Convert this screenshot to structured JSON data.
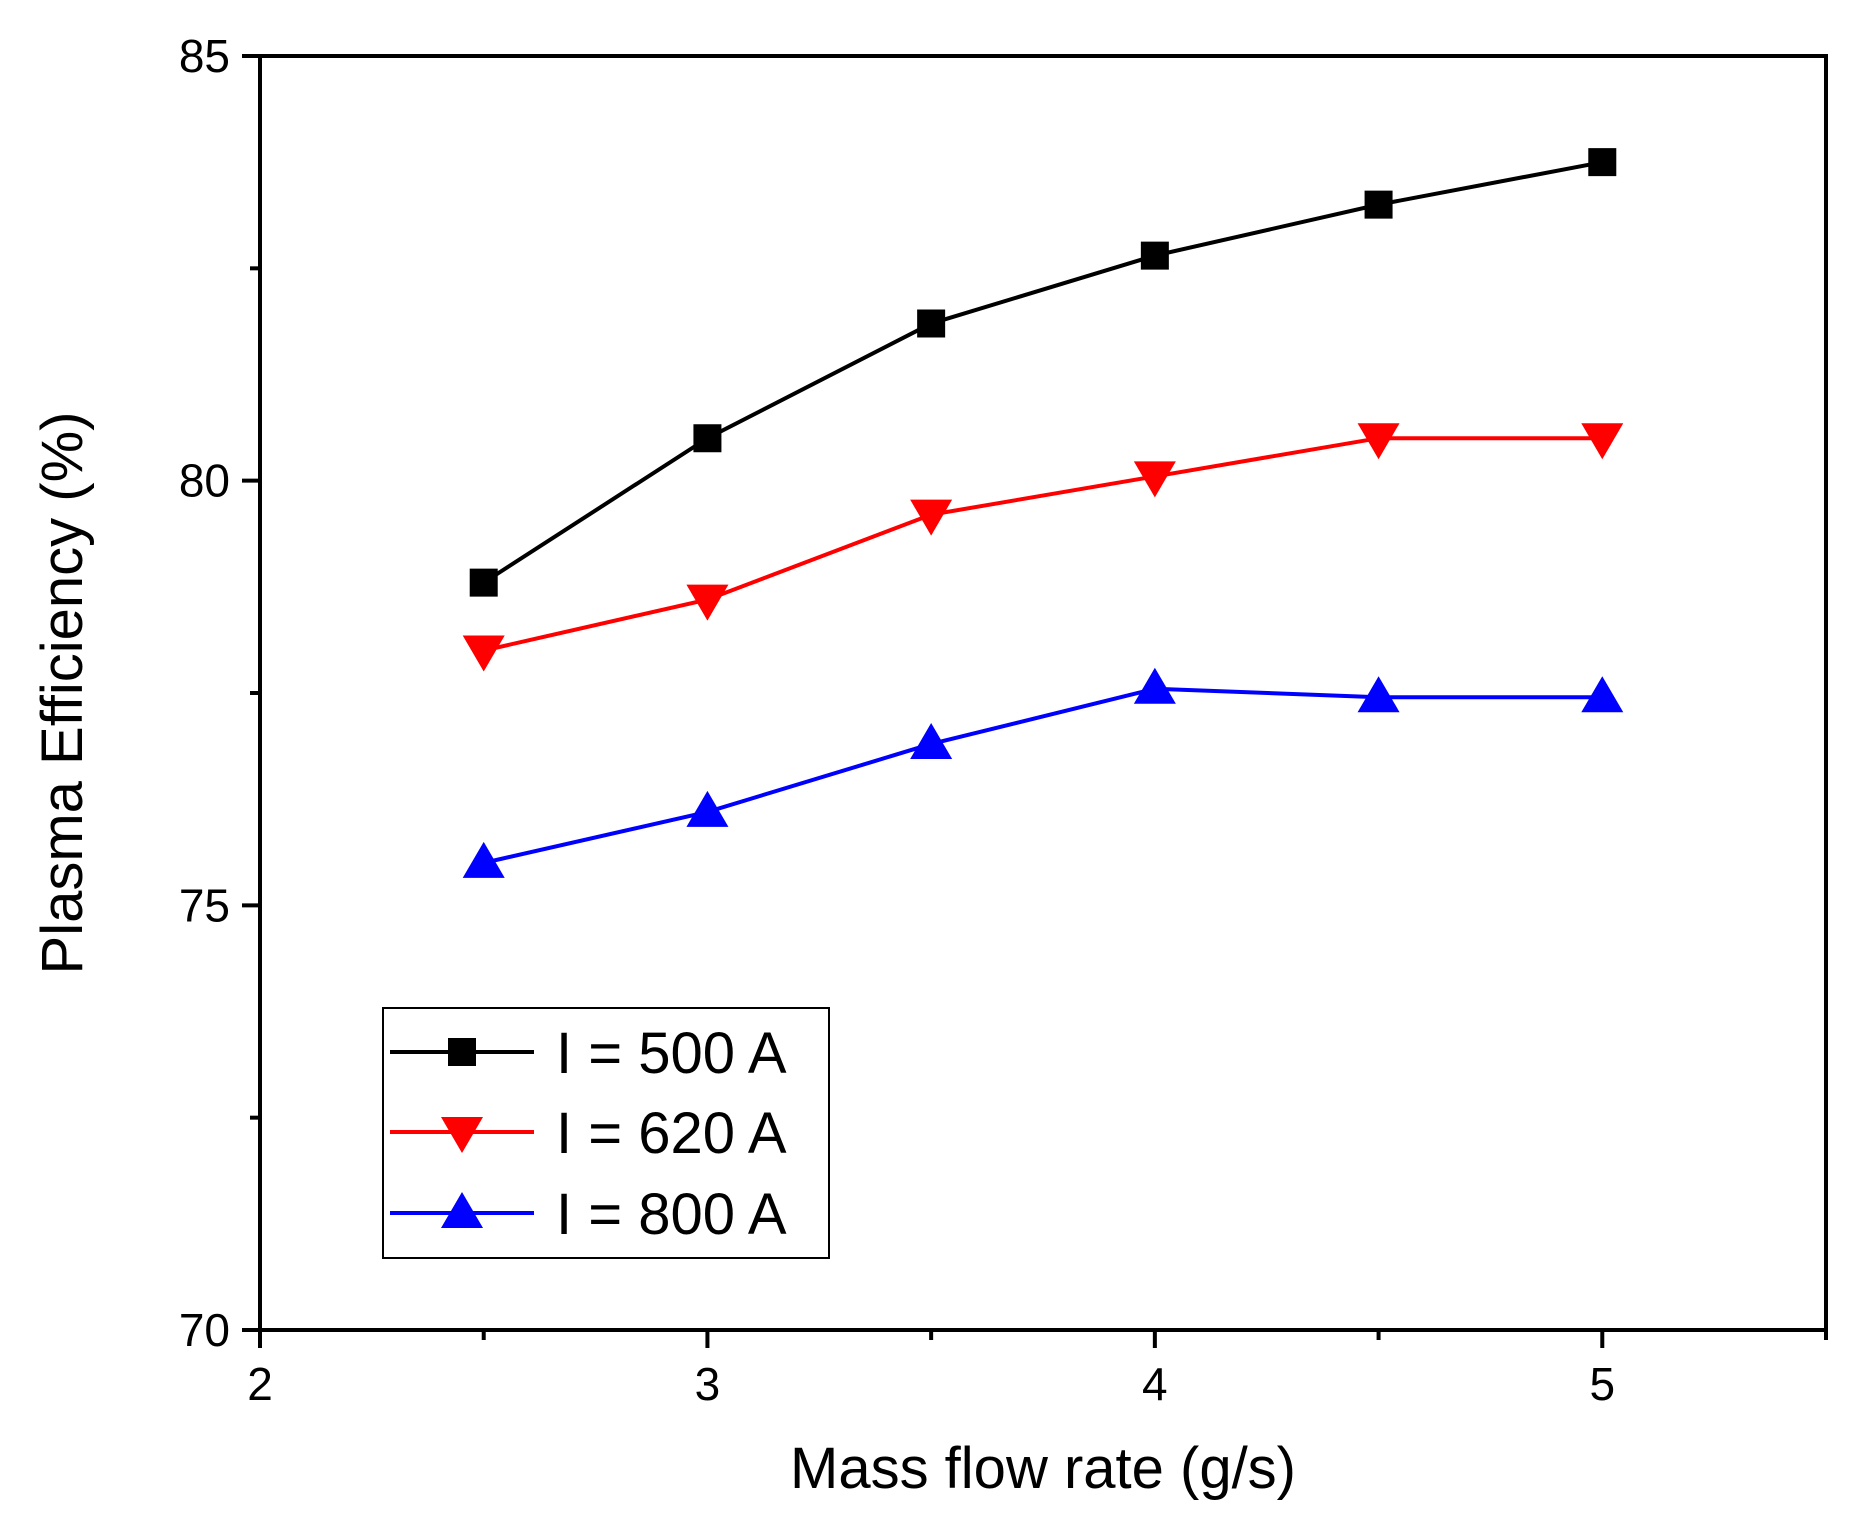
{
  "chart_data": {
    "type": "line",
    "title": "",
    "xlabel": "Mass flow rate (g/s)",
    "ylabel": "Plasma Efficiency (%)",
    "xlim": [
      2,
      5.5
    ],
    "ylim": [
      70,
      85
    ],
    "x_major_ticks": [
      2,
      3,
      4,
      5
    ],
    "x_minor_ticks": [
      2.5,
      3.5,
      4.5,
      5.5
    ],
    "y_major_ticks": [
      70,
      75,
      80,
      85
    ],
    "y_minor_ticks": [
      72.5,
      77.5,
      82.5
    ],
    "x_tick_labels": [
      "2",
      "3",
      "4",
      "5"
    ],
    "y_tick_labels": [
      "70",
      "75",
      "80",
      "85"
    ],
    "grid": false,
    "legend_position": "bottom-left",
    "x": [
      2.5,
      3.0,
      3.5,
      4.0,
      4.5,
      5.0
    ],
    "series": [
      {
        "name": "I = 500 A",
        "color": "#000000",
        "marker": "square",
        "values": [
          78.8,
          80.5,
          81.85,
          82.65,
          83.25,
          83.75
        ]
      },
      {
        "name": "I = 620 A",
        "color": "#ff0000",
        "marker": "triangle-down",
        "values": [
          78.0,
          78.6,
          79.6,
          80.05,
          80.5,
          80.5
        ]
      },
      {
        "name": "I = 800 A",
        "color": "#0000ff",
        "marker": "triangle-up",
        "values": [
          75.5,
          76.1,
          76.9,
          77.55,
          77.45,
          77.45
        ]
      }
    ]
  }
}
